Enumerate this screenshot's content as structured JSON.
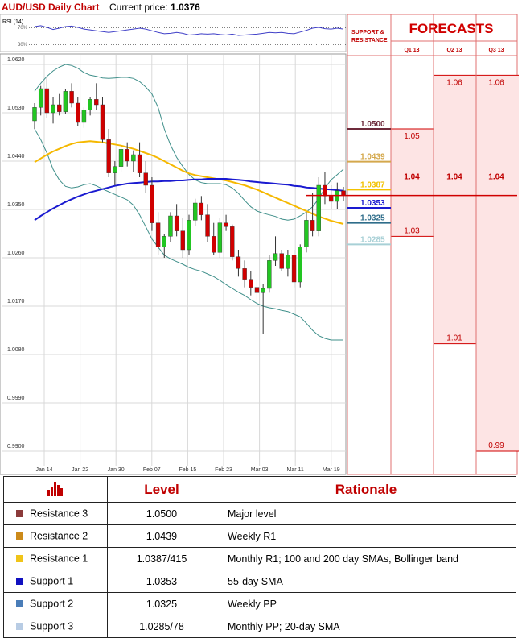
{
  "header": {
    "title": "AUD/USD Daily Chart",
    "price_label": "Current price:",
    "price_value": "1.0376"
  },
  "rsi": {
    "label": "RSI (14)",
    "levels": [
      "70%",
      "30%"
    ]
  },
  "chart_data": [
    {
      "type": "candlestick",
      "title": "AUD/USD Daily Chart",
      "ylim": [
        0.987,
        1.065
      ],
      "y_ticks": [
        "1.0620",
        "1.0530",
        "1.0440",
        "1.0350",
        "1.0260",
        "1.0170",
        "1.0080",
        "0.9990",
        "0.9900"
      ],
      "x_ticks": [
        "Jan 14",
        "Jan 22",
        "Jan 30",
        "Feb 07",
        "Feb 15",
        "Feb 23",
        "Mar 03",
        "Mar 11",
        "Mar 19"
      ],
      "candles": [
        [
          1.0515,
          1.0548,
          1.05,
          1.054
        ],
        [
          1.054,
          1.058,
          1.0525,
          1.0575
        ],
        [
          1.0575,
          1.0595,
          1.052,
          1.053
        ],
        [
          1.053,
          1.056,
          1.051,
          1.0545
        ],
        [
          1.0545,
          1.0565,
          1.0525,
          1.0532
        ],
        [
          1.0532,
          1.0575,
          1.0528,
          1.057
        ],
        [
          1.057,
          1.0585,
          1.054,
          1.0548
        ],
        [
          1.0548,
          1.056,
          1.0505,
          1.0512
        ],
        [
          1.0512,
          1.054,
          1.0502,
          1.0535
        ],
        [
          1.0535,
          1.056,
          1.0525,
          1.0555
        ],
        [
          1.0555,
          1.0585,
          1.0535,
          1.0545
        ],
        [
          1.0545,
          1.056,
          1.0475,
          1.048
        ],
        [
          1.048,
          1.05,
          1.041,
          1.0418
        ],
        [
          1.0418,
          1.044,
          1.0395,
          1.043
        ],
        [
          1.043,
          1.047,
          1.042,
          1.0462
        ],
        [
          1.0462,
          1.0475,
          1.043,
          1.044
        ],
        [
          1.044,
          1.046,
          1.042,
          1.0452
        ],
        [
          1.0452,
          1.0475,
          1.041,
          1.0418
        ],
        [
          1.0418,
          1.044,
          1.038,
          1.0395
        ],
        [
          1.0395,
          1.041,
          1.031,
          1.0325
        ],
        [
          1.0325,
          1.0345,
          1.0265,
          1.028
        ],
        [
          1.028,
          1.0305,
          1.026,
          1.03
        ],
        [
          1.03,
          1.0345,
          1.029,
          1.0338
        ],
        [
          1.0338,
          1.036,
          1.03,
          1.031
        ],
        [
          1.031,
          1.0335,
          1.026,
          1.0275
        ],
        [
          1.0275,
          1.034,
          1.0265,
          1.033
        ],
        [
          1.033,
          1.037,
          1.032,
          1.0362
        ],
        [
          1.0362,
          1.0375,
          1.033,
          1.034
        ],
        [
          1.034,
          1.036,
          1.029,
          1.03
        ],
        [
          1.03,
          1.0325,
          1.0265,
          1.027
        ],
        [
          1.027,
          1.0335,
          1.026,
          1.0325
        ],
        [
          1.0325,
          1.034,
          1.031,
          1.0318
        ],
        [
          1.0318,
          1.0322,
          1.0255,
          1.0262
        ],
        [
          1.0262,
          1.0275,
          1.0225,
          1.024
        ],
        [
          1.024,
          1.0255,
          1.0205,
          1.022
        ],
        [
          1.022,
          1.0235,
          1.019,
          1.0205
        ],
        [
          1.0205,
          1.022,
          1.018,
          1.0195
        ],
        [
          1.0195,
          1.0212,
          1.0118,
          1.0203
        ],
        [
          1.0203,
          1.0265,
          1.0195,
          1.0255
        ],
        [
          1.0255,
          1.03,
          1.0245,
          1.0268
        ],
        [
          1.0268,
          1.0275,
          1.0235,
          1.024
        ],
        [
          1.024,
          1.0275,
          1.0225,
          1.0265
        ],
        [
          1.0265,
          1.0275,
          1.0205,
          1.0215
        ],
        [
          1.0215,
          1.0285,
          1.0205,
          1.028
        ],
        [
          1.028,
          1.0345,
          1.027,
          1.033
        ],
        [
          1.033,
          1.038,
          1.03,
          1.031
        ],
        [
          1.031,
          1.041,
          1.03,
          1.0395
        ],
        [
          1.0395,
          1.042,
          1.036,
          1.0375
        ],
        [
          1.0375,
          1.0395,
          1.035,
          1.0365
        ],
        [
          1.0365,
          1.04,
          1.035,
          1.0385
        ],
        [
          1.0385,
          1.0392,
          1.0365,
          1.0376
        ]
      ],
      "ma_yellow": [
        1.0438,
        1.0445,
        1.0452,
        1.0458,
        1.0463,
        1.0468,
        1.0472,
        1.0475,
        1.0476,
        1.0477,
        1.0476,
        1.0475,
        1.0473,
        1.0471,
        1.0469,
        1.0466,
        1.0463,
        1.0459,
        1.0455,
        1.0451,
        1.0446,
        1.044,
        1.0434,
        1.0428,
        1.0422,
        1.0417,
        1.0414,
        1.0412,
        1.041,
        1.0408,
        1.0406,
        1.0404,
        1.0401,
        1.0398,
        1.0395,
        1.0391,
        1.0387,
        1.0382,
        1.0377,
        1.0372,
        1.0367,
        1.0362,
        1.0357,
        1.0352,
        1.0347,
        1.0342,
        1.0337,
        1.0333,
        1.0329,
        1.0326,
        1.0323
      ],
      "ma_blue": [
        1.033,
        1.0338,
        1.0345,
        1.0352,
        1.0358,
        1.0364,
        1.0369,
        1.0374,
        1.0378,
        1.0382,
        1.0385,
        1.0388,
        1.0391,
        1.0394,
        1.0396,
        1.0398,
        1.0399,
        1.04,
        1.0401,
        1.0402,
        1.0402,
        1.0403,
        1.0403,
        1.0404,
        1.0404,
        1.0405,
        1.0406,
        1.0406,
        1.0407,
        1.0407,
        1.0407,
        1.0407,
        1.0406,
        1.0405,
        1.0404,
        1.0402,
        1.0401,
        1.04,
        1.0399,
        1.0398,
        1.0397,
        1.0396,
        1.0394,
        1.0393,
        1.0391,
        1.039,
        1.0389,
        1.0388,
        1.0387,
        1.0386,
        1.0385
      ],
      "bb_upper": [
        1.057,
        1.0585,
        1.0598,
        1.0608,
        1.0615,
        1.062,
        1.0618,
        1.0613,
        1.0605,
        1.06,
        1.0598,
        1.0595,
        1.0594,
        1.0595,
        1.0596,
        1.0596,
        1.0594,
        1.0588,
        1.0578,
        1.0565,
        1.054,
        1.05,
        1.047,
        1.0447,
        1.043,
        1.0415,
        1.0405,
        1.04,
        1.0398,
        1.0398,
        1.0398,
        1.0396,
        1.039,
        1.038,
        1.0367,
        1.0355,
        1.0347,
        1.0343,
        1.034,
        1.0337,
        1.0332,
        1.033,
        1.0332,
        1.0338,
        1.0345,
        1.0355,
        1.037,
        1.039,
        1.0405,
        1.0415,
        1.0425
      ],
      "bb_lower": [
        1.05,
        1.048,
        1.0455,
        1.0425,
        1.0405,
        1.0393,
        1.039,
        1.0392,
        1.0396,
        1.0398,
        1.0394,
        1.0388,
        1.0383,
        1.0378,
        1.0373,
        1.0368,
        1.0358,
        1.034,
        1.0318,
        1.0295,
        1.028,
        1.0265,
        1.0258,
        1.0253,
        1.0248,
        1.0242,
        1.0238,
        1.0235,
        1.023,
        1.0225,
        1.0218,
        1.021,
        1.0203,
        1.0196,
        1.019,
        1.0182,
        1.0175,
        1.017,
        1.0167,
        1.0165,
        1.0162,
        1.016,
        1.0155,
        1.015,
        1.0138,
        1.0125,
        1.0115,
        1.011,
        1.0107,
        1.0107,
        1.0107
      ],
      "rsi_values": [
        72,
        74,
        70,
        65,
        68,
        72,
        73,
        70,
        66,
        64,
        62,
        60,
        58,
        60,
        62,
        64,
        66,
        68,
        66,
        62,
        58,
        55,
        56,
        58,
        56,
        52,
        53,
        55,
        54,
        55,
        53,
        52,
        54,
        51,
        52,
        53,
        54,
        56,
        58,
        57,
        58,
        56,
        55,
        59,
        63,
        68,
        70,
        67,
        66,
        68,
        66
      ]
    },
    {
      "type": "table",
      "title": "FORECASTS",
      "columns": [
        "Q1 13",
        "Q2 13",
        "Q3 13"
      ],
      "sr_column": "SUPPORT & RESISTANCE",
      "sr_levels": [
        {
          "label": "1.0500",
          "value": 1.05,
          "color": "#6d2a3b"
        },
        {
          "label": "1.0439",
          "value": 1.0439,
          "color": "#d4a84c"
        },
        {
          "label": "1.0387",
          "value": 1.0387,
          "color": "#f2c200"
        },
        {
          "label": "1.0353",
          "value": 1.0353,
          "color": "#1a1ad0"
        },
        {
          "label": "1.0325",
          "value": 1.0325,
          "color": "#2f6d8a"
        },
        {
          "label": "1.0285",
          "value": 1.0285,
          "color": "#a8d0d6"
        }
      ],
      "current_price": 1.0376,
      "forecast_bands": [
        {
          "column": "Q1 13",
          "high_label": "1.05",
          "high": 1.05,
          "mid_label": "1.04",
          "mid": 1.04,
          "low_label": "1.03",
          "low": 1.03
        },
        {
          "column": "Q2 13",
          "high_label": "1.06",
          "high": 1.06,
          "mid_label": "1.04",
          "mid": 1.04,
          "low_label": "1.01",
          "low": 1.01
        },
        {
          "column": "Q3 13",
          "high_label": "1.06",
          "high": 1.06,
          "mid_label": "1.04",
          "mid": 1.04,
          "low_label": "0.99",
          "low": 0.99
        }
      ]
    }
  ],
  "table": {
    "headers": [
      "Level",
      "Rationale"
    ],
    "rows": [
      {
        "name": "Resistance 3",
        "color": "#8b3a3a",
        "level": "1.0500",
        "rationale": "Major level"
      },
      {
        "name": "Resistance 2",
        "color": "#cc8a1a",
        "level": "1.0439",
        "rationale": "Weekly R1"
      },
      {
        "name": "Resistance 1",
        "color": "#f0c419",
        "level": "1.0387/415",
        "rationale": "Monthly R1; 100 and 200 day SMAs, Bollinger band"
      },
      {
        "name": "Support 1",
        "color": "#1010c0",
        "level": "1.0353",
        "rationale": "55-day SMA"
      },
      {
        "name": "Support 2",
        "color": "#4a7db8",
        "level": "1.0325",
        "rationale": "Weekly PP"
      },
      {
        "name": "Support 3",
        "color": "#b8cce4",
        "level": "1.0285/78",
        "rationale": "Monthly PP; 20-day SMA"
      }
    ]
  },
  "colors": {
    "accent_red": "#c00000",
    "bull": "#22c622",
    "bear": "#d00000",
    "ma_yellow": "#f5b800",
    "ma_blue": "#1a1ad0",
    "bollinger": "#3f8f8a",
    "rsi": "#4040c8",
    "forecast_fill": "#fde4e4"
  }
}
